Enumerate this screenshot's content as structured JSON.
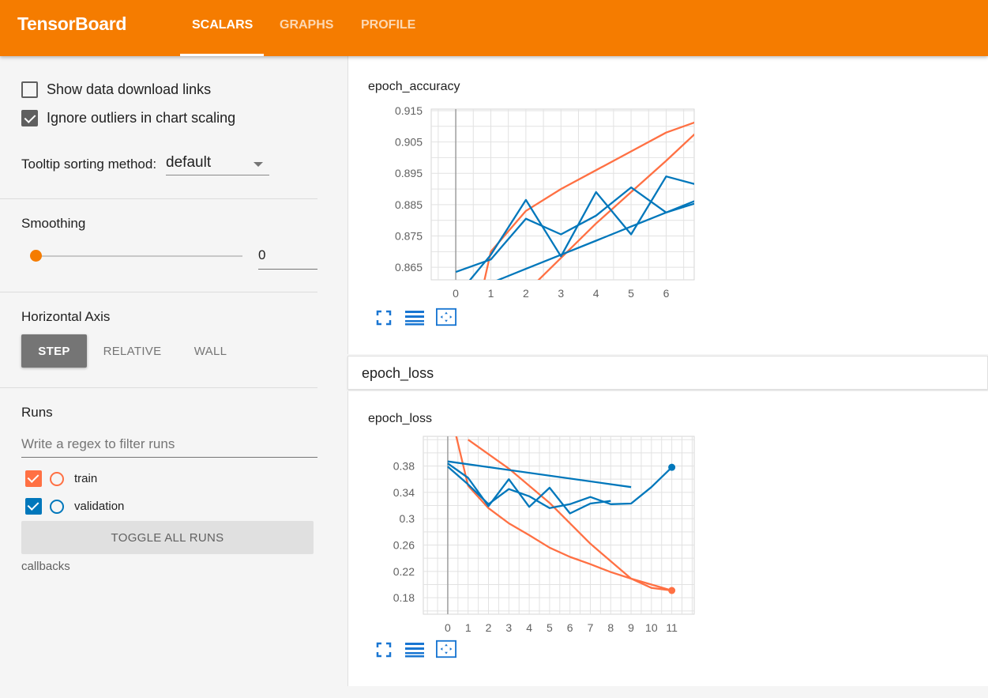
{
  "app": {
    "brand": "TensorBoard"
  },
  "nav": {
    "tabs": [
      {
        "label": "SCALARS",
        "active": true
      },
      {
        "label": "GRAPHS",
        "active": false
      },
      {
        "label": "PROFILE",
        "active": false
      }
    ]
  },
  "sidebar": {
    "show_download_links": {
      "label": "Show data download links",
      "checked": false
    },
    "ignore_outliers": {
      "label": "Ignore outliers in chart scaling",
      "checked": true
    },
    "tooltip_sorting": {
      "label": "Tooltip sorting method:",
      "value": "default"
    },
    "smoothing": {
      "title": "Smoothing",
      "value": "0",
      "fraction": 0
    },
    "horizontal_axis": {
      "title": "Horizontal Axis",
      "options": [
        "STEP",
        "RELATIVE",
        "WALL"
      ],
      "selected": "STEP"
    },
    "runs": {
      "title": "Runs",
      "filter_placeholder": "Write a regex to filter runs",
      "items": [
        {
          "name": "train",
          "checked": true,
          "color": "#ff7043"
        },
        {
          "name": "validation",
          "checked": true,
          "color": "#0077bb"
        }
      ],
      "toggle_all_label": "TOGGLE ALL RUNS",
      "directory": "callbacks"
    }
  },
  "main": {
    "category_header": "epoch_loss"
  },
  "colors": {
    "accent": "#f57c00",
    "train": "#ff7043",
    "validation": "#0077bb",
    "icon": "#1976d2"
  },
  "icons": [
    "fullscreen-icon",
    "toggle-log-scale-icon",
    "fit-domain-icon"
  ],
  "chart_data": [
    {
      "type": "line",
      "title": "epoch_accuracy",
      "x_ticks": [
        "0",
        "1",
        "2",
        "3",
        "4",
        "5",
        "6"
      ],
      "y_ticks": [
        "0.865",
        "0.875",
        "0.885",
        "0.895",
        "0.905",
        "0.915"
      ],
      "xlim": [
        -0.7,
        6.8
      ],
      "ylim": [
        0.861,
        0.9155
      ],
      "grid": true,
      "series": [
        {
          "name": "train",
          "color": "#ff7043",
          "x": [
            0,
            0.8,
            1,
            2,
            3,
            4,
            5,
            6,
            7
          ],
          "y": [
            0.835,
            0.86,
            0.87,
            0.883,
            0.89,
            0.896,
            0.902,
            0.908,
            0.912
          ]
        },
        {
          "name": "train",
          "color": "#ff7043",
          "x": [
            1,
            2,
            3,
            4,
            5,
            6,
            7
          ],
          "y": [
            0.847,
            0.857,
            0.868,
            0.879,
            0.889,
            0.899,
            0.9095
          ]
        },
        {
          "name": "validation",
          "color": "#0077bb",
          "x": [
            0,
            1,
            2,
            3,
            4,
            5,
            6,
            7
          ],
          "y": [
            0.8635,
            0.8675,
            0.8805,
            0.8755,
            0.8815,
            0.8905,
            0.8825,
            0.886
          ]
        },
        {
          "name": "validation",
          "color": "#0077bb",
          "x": [
            0.3,
            1,
            2,
            3,
            4,
            5,
            6,
            7
          ],
          "y": [
            0.8595,
            0.869,
            0.8865,
            0.8685,
            0.889,
            0.8755,
            0.894,
            0.891
          ]
        },
        {
          "name": "validation",
          "color": "#0077bb",
          "x": [
            1,
            2,
            3,
            4,
            5,
            6,
            7
          ],
          "y": [
            0.86,
            0.8645,
            0.869,
            0.8735,
            0.878,
            0.8825,
            0.887
          ]
        }
      ]
    },
    {
      "type": "line",
      "title": "epoch_loss",
      "x_ticks": [
        "0",
        "1",
        "2",
        "3",
        "4",
        "5",
        "6",
        "7",
        "8",
        "9",
        "10",
        "11"
      ],
      "y_ticks": [
        "0.18",
        "0.22",
        "0.26",
        "0.3",
        "0.34",
        "0.38"
      ],
      "xlim": [
        -1.2,
        12.1
      ],
      "ylim": [
        0.155,
        0.425
      ],
      "grid": true,
      "series": [
        {
          "name": "train",
          "color": "#ff7043",
          "x": [
            0.3,
            1,
            2,
            3,
            4,
            5,
            6,
            7,
            8,
            9,
            10,
            11
          ],
          "y": [
            0.44,
            0.35,
            0.316,
            0.293,
            0.275,
            0.256,
            0.242,
            0.231,
            0.219,
            0.209,
            0.195,
            0.191
          ]
        },
        {
          "name": "train",
          "color": "#ff7043",
          "x": [
            1,
            3,
            5,
            7,
            9,
            11
          ],
          "y": [
            0.42,
            0.376,
            0.324,
            0.262,
            0.209,
            0.191
          ]
        },
        {
          "name": "validation",
          "color": "#0077bb",
          "x": [
            0,
            1,
            2,
            3,
            4,
            5,
            6,
            7,
            8,
            9,
            10,
            11
          ],
          "y": [
            0.379,
            0.352,
            0.322,
            0.345,
            0.334,
            0.316,
            0.322,
            0.333,
            0.322,
            0.323,
            0.348,
            0.378
          ]
        },
        {
          "name": "validation",
          "color": "#0077bb",
          "x": [
            0,
            1,
            2,
            3,
            4,
            5,
            6,
            7,
            8
          ],
          "y": [
            0.384,
            0.362,
            0.319,
            0.36,
            0.318,
            0.347,
            0.308,
            0.323,
            0.327
          ]
        },
        {
          "name": "validation",
          "color": "#0077bb",
          "x": [
            0,
            9
          ],
          "y": [
            0.387,
            0.348
          ]
        }
      ],
      "markers": [
        {
          "name": "validation",
          "color": "#0077bb",
          "x": 11,
          "y": 0.378
        },
        {
          "name": "train",
          "color": "#ff7043",
          "x": 11,
          "y": 0.191
        }
      ]
    }
  ]
}
